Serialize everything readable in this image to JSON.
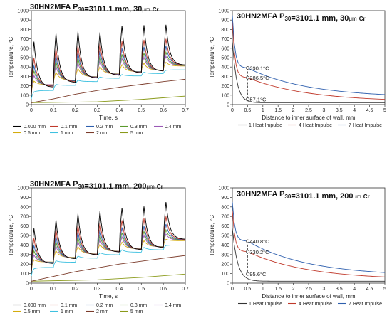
{
  "chart_data": [
    {
      "type": "line",
      "title": "30HN2MFA P30=3101.1 mm, 30μm Cr",
      "title_parts": {
        "main": "30HN2MFA P",
        "sub": "30",
        "rest": "=3101.1 mm, 30",
        "mu": "μm",
        "cr": "Cr"
      },
      "xlabel": "Time, s",
      "ylabel": "Temperature, °C",
      "xlim": [
        0,
        0.7
      ],
      "ylim": [
        0,
        1000
      ],
      "xticks": [
        0,
        0.1,
        0.2,
        0.3,
        0.4,
        0.5,
        0.6,
        0.7
      ],
      "yticks": [
        0,
        100,
        200,
        300,
        400,
        500,
        600,
        700,
        800,
        900,
        1000
      ],
      "pulse_times": [
        0,
        0.1,
        0.2,
        0.3,
        0.4,
        0.5,
        0.6
      ],
      "series": [
        {
          "name": "0.000 mm",
          "color": "#000000",
          "peaks": [
            670,
            760,
            780,
            770,
            840,
            845,
            850
          ],
          "bases": [
            80,
            185,
            235,
            280,
            310,
            335,
            355
          ],
          "end": 420
        },
        {
          "name": "0.1 mm",
          "color": "#c0392b",
          "peaks": [
            495,
            600,
            630,
            650,
            675,
            690,
            700
          ],
          "bases": [
            90,
            195,
            245,
            285,
            315,
            340,
            360
          ],
          "end": 420
        },
        {
          "name": "0.2 mm",
          "color": "#2e5fae",
          "peaks": [
            415,
            520,
            555,
            575,
            600,
            615,
            625
          ],
          "bases": [
            100,
            200,
            250,
            290,
            320,
            345,
            362
          ],
          "end": 418
        },
        {
          "name": "0.3 mm",
          "color": "#5b9a2d",
          "peaks": [
            360,
            460,
            495,
            515,
            535,
            550,
            560
          ],
          "bases": [
            110,
            205,
            255,
            292,
            322,
            347,
            364
          ],
          "end": 416
        },
        {
          "name": "0.4 mm",
          "color": "#9b59b6",
          "peaks": [
            310,
            410,
            445,
            470,
            490,
            505,
            515
          ],
          "bases": [
            115,
            210,
            258,
            295,
            325,
            349,
            365
          ],
          "end": 414
        },
        {
          "name": "0.5 mm",
          "color": "#d4ac0d",
          "peaks": [
            250,
            345,
            385,
            405,
            425,
            440,
            450
          ],
          "bases": [
            120,
            212,
            260,
            297,
            327,
            351,
            367
          ],
          "end": 410
        },
        {
          "name": "1 mm",
          "color": "#3fc1e0",
          "peaks": [
            135,
            215,
            260,
            295,
            320,
            345,
            365
          ],
          "bases": [
            60,
            150,
            205,
            245,
            280,
            305,
            330
          ],
          "end": 370
        },
        {
          "name": "2 mm",
          "color": "#7b3b2a",
          "linear": [
            [
              0,
              20
            ],
            [
              0.1,
              60
            ],
            [
              0.2,
              110
            ],
            [
              0.3,
              150
            ],
            [
              0.4,
              185
            ],
            [
              0.5,
              215
            ],
            [
              0.6,
              245
            ],
            [
              0.7,
              270
            ]
          ]
        },
        {
          "name": "5 mm",
          "color": "#8a9a1a",
          "linear": [
            [
              0,
              20
            ],
            [
              0.3,
              30
            ],
            [
              0.5,
              55
            ],
            [
              0.7,
              90
            ]
          ]
        }
      ],
      "legend": [
        "0.000 mm",
        "0.1 mm",
        "0.2 mm",
        "0.3 mm",
        "0.4 mm",
        "0.5 mm",
        "1 mm",
        "2 mm",
        "5 mm"
      ]
    },
    {
      "type": "line",
      "title": "30HN2MFA P30=3101.1 mm, 30μm Cr",
      "title_parts": {
        "main": "30HN2MFA P",
        "sub": "30",
        "rest": "=3101.1 mm, 30",
        "mu": "μm",
        "cr": "Cr"
      },
      "xlabel": "Distance to inner surface of wall, mm",
      "ylabel": "Temperature, °C",
      "xlim": [
        0,
        5
      ],
      "ylim": [
        0,
        1000
      ],
      "xticks": [
        0,
        0.5,
        1,
        1.5,
        2,
        2.5,
        3,
        3.5,
        4,
        4.5,
        5
      ],
      "yticks": [
        0,
        100,
        200,
        300,
        400,
        500,
        600,
        700,
        800,
        900,
        1000
      ],
      "series": [
        {
          "name": "1 Heat Impulse",
          "color": "#333333",
          "t0": 670,
          "decay": 7.0,
          "tail": 20
        },
        {
          "name": "4 Heat Impulse",
          "color": "#c0392b",
          "t0": 880,
          "near": 0.12,
          "mid_at_05": 286.5,
          "far": 30
        },
        {
          "name": "7 Heat Impulse",
          "color": "#2e5fae",
          "t0": 950,
          "near": 0.12,
          "mid_at_05": 390.1,
          "far": 75
        }
      ],
      "annotations": [
        {
          "x": 0.5,
          "y": 390.1,
          "text": "390.1°C"
        },
        {
          "x": 0.5,
          "y": 286.5,
          "text": "286.5°C"
        },
        {
          "x": 0.5,
          "y": 57.1,
          "text": "57.1°C"
        }
      ],
      "legend": [
        "1 Heat Impulse",
        "4 Heat Impulse",
        "7 Heat Impulse"
      ]
    },
    {
      "type": "line",
      "title": "30HN2MFA P30=3101.1 mm, 200μm Cr",
      "title_parts": {
        "main": "30HN2MFA P",
        "sub": "30",
        "rest": "=3101.1 mm, 200",
        "mu": "μm",
        "cr": "Cr"
      },
      "xlabel": "Time, s",
      "ylabel": "Temperature, °C",
      "xlim": [
        0,
        0.7
      ],
      "ylim": [
        0,
        1000
      ],
      "xticks": [
        0,
        0.1,
        0.2,
        0.3,
        0.4,
        0.5,
        0.6,
        0.7
      ],
      "yticks": [
        0,
        100,
        200,
        300,
        400,
        500,
        600,
        700,
        800,
        900,
        1000
      ],
      "pulse_times": [
        0,
        0.1,
        0.2,
        0.3,
        0.4,
        0.5,
        0.6
      ],
      "series": [
        {
          "name": "0.000 mm",
          "color": "#000000",
          "peaks": [
            575,
            665,
            730,
            755,
            790,
            805,
            850
          ],
          "bases": [
            100,
            205,
            255,
            295,
            325,
            350,
            372
          ],
          "end": 460
        },
        {
          "name": "0.1 mm",
          "color": "#c0392b",
          "peaks": [
            470,
            565,
            610,
            635,
            660,
            680,
            700
          ],
          "bases": [
            105,
            210,
            260,
            298,
            328,
            353,
            375
          ],
          "end": 458
        },
        {
          "name": "0.2 mm",
          "color": "#2e5fae",
          "peaks": [
            395,
            490,
            535,
            560,
            585,
            600,
            620
          ],
          "bases": [
            110,
            215,
            262,
            300,
            330,
            355,
            377
          ],
          "end": 455
        },
        {
          "name": "0.3 mm",
          "color": "#5b9a2d",
          "peaks": [
            340,
            435,
            480,
            505,
            530,
            545,
            560
          ],
          "bases": [
            115,
            218,
            265,
            302,
            332,
            357,
            379
          ],
          "end": 452
        },
        {
          "name": "0.4 mm",
          "color": "#9b59b6",
          "peaks": [
            295,
            390,
            435,
            460,
            485,
            500,
            515
          ],
          "bases": [
            120,
            220,
            267,
            305,
            334,
            359,
            381
          ],
          "end": 450
        },
        {
          "name": "0.5 mm",
          "color": "#d4ac0d",
          "peaks": [
            245,
            340,
            385,
            410,
            430,
            445,
            460
          ],
          "bases": [
            125,
            222,
            270,
            307,
            336,
            361,
            383
          ],
          "end": 445
        },
        {
          "name": "1 mm",
          "color": "#3fc1e0",
          "peaks": [
            150,
            235,
            285,
            320,
            350,
            375,
            395
          ],
          "bases": [
            75,
            165,
            220,
            262,
            298,
            325,
            350
          ],
          "end": 400
        },
        {
          "name": "2 mm",
          "color": "#7b3b2a",
          "linear": [
            [
              0,
              20
            ],
            [
              0.1,
              70
            ],
            [
              0.2,
              120
            ],
            [
              0.3,
              160
            ],
            [
              0.4,
              200
            ],
            [
              0.5,
              230
            ],
            [
              0.6,
              262
            ],
            [
              0.7,
              290
            ]
          ]
        },
        {
          "name": "5 mm",
          "color": "#8a9a1a",
          "linear": [
            [
              0,
              20
            ],
            [
              0.3,
              35
            ],
            [
              0.5,
              60
            ],
            [
              0.7,
              95
            ]
          ]
        }
      ],
      "legend": [
        "0.000 mm",
        "0.1 mm",
        "0.2 mm",
        "0.3 mm",
        "0.4 mm",
        "0.5 mm",
        "1 mm",
        "2 mm",
        "5 mm"
      ]
    },
    {
      "type": "line",
      "title": "30HN2MFA P30=3101.1 mm, 200μm Cr",
      "title_parts": {
        "main": "30HN2MFA P",
        "sub": "30",
        "rest": "=3101.1 mm, 200",
        "mu": "μm",
        "cr": "Cr"
      },
      "xlabel": "Distance to inner surface of wall, mm",
      "ylabel": "Temperature, °C",
      "xlim": [
        0,
        5
      ],
      "ylim": [
        0,
        1000
      ],
      "xticks": [
        0,
        0.5,
        1,
        1.5,
        2,
        2.5,
        3,
        3.5,
        4,
        4.5,
        5
      ],
      "yticks": [
        0,
        100,
        200,
        300,
        400,
        500,
        600,
        700,
        800,
        900,
        1000
      ],
      "series": [
        {
          "name": "1 Heat Impulse",
          "color": "#333333",
          "t0": 575,
          "decay": 6.0,
          "tail": 20
        },
        {
          "name": "4 Heat Impulse",
          "color": "#c0392b",
          "t0": 760,
          "near": 0.12,
          "mid_at_05": 330.2,
          "far": 35
        },
        {
          "name": "7 Heat Impulse",
          "color": "#2e5fae",
          "t0": 850,
          "near": 0.12,
          "mid_at_05": 440.8,
          "far": 75
        }
      ],
      "annotations": [
        {
          "x": 0.5,
          "y": 440.8,
          "text": "440.8°C"
        },
        {
          "x": 0.5,
          "y": 330.2,
          "text": "330.2°C"
        },
        {
          "x": 0.5,
          "y": 95.6,
          "text": "95.6°C"
        }
      ],
      "legend": [
        "1 Heat Impulse",
        "4 Heat Impulse",
        "7 Heat Impulse"
      ]
    }
  ]
}
